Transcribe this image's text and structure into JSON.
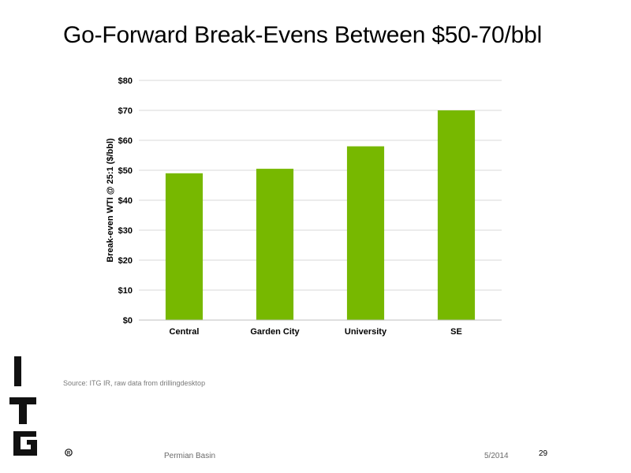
{
  "slide": {
    "title": "Go-Forward Break-Evens Between $50-70/bbl",
    "source": "Source: ITG IR, raw data from drillingdesktop",
    "footer_topic": "Permian Basin",
    "footer_date": "5/2014",
    "page_number": "29",
    "logo_letters": "ITG"
  },
  "colors": {
    "bar": "#77b800",
    "grid": "#d9d9d9",
    "axis": "#bfbfbf"
  },
  "chart_data": {
    "type": "bar",
    "title": "",
    "xlabel": "",
    "ylabel": "Break-even WTI @ 25:1 ($/bbl)",
    "categories": [
      "Central",
      "Garden City",
      "University",
      "SE"
    ],
    "values": [
      49,
      50.5,
      58,
      70
    ],
    "ylim": [
      0,
      80
    ],
    "yticks": [
      0,
      10,
      20,
      30,
      40,
      50,
      60,
      70,
      80
    ],
    "ytick_labels": [
      "$0",
      "$10",
      "$20",
      "$30",
      "$40",
      "$50",
      "$60",
      "$70",
      "$80"
    ],
    "grid": true,
    "legend": "none"
  }
}
